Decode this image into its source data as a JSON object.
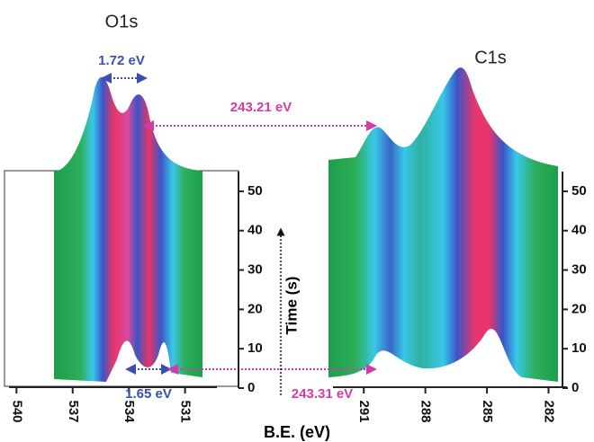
{
  "figure": {
    "xlabel": "B.E. (eV)",
    "ylabel": "Time (s)",
    "annotations": [
      {
        "text": "243.21 eV",
        "color": "#d63aa8"
      },
      {
        "text": "243.31 eV",
        "color": "#d63aa8"
      }
    ]
  },
  "chart_data": [
    {
      "type": "surface",
      "title": "O1s",
      "xlim": [
        540.4,
        529.3
      ],
      "xticks": [
        540,
        537,
        534,
        531
      ],
      "ylim": [
        0,
        55
      ],
      "yticks": [
        0,
        10,
        20,
        30,
        40,
        50
      ],
      "annotations": [
        {
          "text": "1.72 eV",
          "color": "#3b4fb0"
        },
        {
          "text": "1.65 eV",
          "color": "#3b4fb0"
        }
      ]
    },
    {
      "type": "surface",
      "title": "C1s",
      "xlim": [
        292.5,
        281.1
      ],
      "xticks": [
        291,
        288,
        285,
        282
      ],
      "ylim": [
        0,
        55
      ],
      "yticks": [
        0,
        10,
        20,
        30,
        40,
        50
      ],
      "annotations": []
    }
  ]
}
